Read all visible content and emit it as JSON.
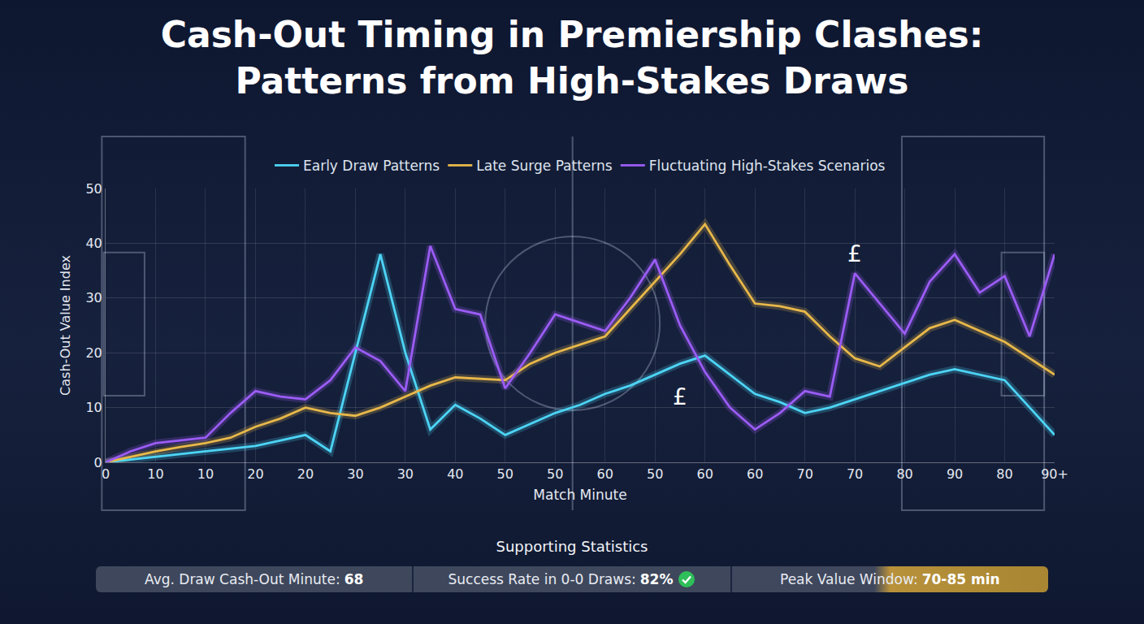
{
  "chart_data": {
    "type": "line",
    "title": "Cash-Out Timing in Premiership Clashes:\nPatterns from High-Stakes Draws",
    "x_label": "Match Minute",
    "y_label": "Cash-Out Value Index",
    "categories": [
      "0",
      null,
      "10",
      null,
      "10",
      null,
      "20",
      null,
      "20",
      null,
      "30",
      null,
      "30",
      null,
      "40",
      null,
      "50",
      null,
      "50",
      null,
      "60",
      null,
      "50",
      null,
      "60",
      null,
      "60",
      null,
      "70",
      null,
      "70",
      null,
      "80",
      null,
      "90",
      null,
      "80",
      null,
      "90+"
    ],
    "series": [
      {
        "name": "Early Draw Patterns",
        "color": "#4dd4f5",
        "values": [
          0,
          0.5,
          1,
          1.5,
          2,
          2.5,
          3,
          4,
          5,
          2,
          20,
          38,
          20,
          6,
          10.5,
          8,
          5,
          7,
          9,
          10.5,
          12.5,
          14,
          16,
          18,
          19.5,
          16,
          12.5,
          11,
          9,
          10,
          11.5,
          13,
          14.5,
          16,
          17,
          16,
          15,
          10,
          5
        ]
      },
      {
        "name": "Late Surge Patterns",
        "color": "#e8b84a",
        "values": [
          0,
          1,
          2,
          2.8,
          3.5,
          4.5,
          6.5,
          8,
          10,
          9,
          8.5,
          10,
          12,
          14,
          15.5,
          15.2,
          15,
          18,
          20,
          21.5,
          23,
          28,
          33,
          38,
          43.5,
          36,
          29,
          28.5,
          27.5,
          23,
          19,
          17.5,
          21,
          24.5,
          26,
          24,
          22,
          19,
          16
        ]
      },
      {
        "name": "Fluctuating High-Stakes Scenarios",
        "color": "#9b5cf5",
        "values": [
          0,
          2,
          3.5,
          4,
          4.5,
          9,
          13,
          12,
          11.5,
          15,
          21,
          18.5,
          13,
          39.5,
          28,
          27,
          13.5,
          20,
          27,
          25.5,
          24,
          30,
          37,
          25,
          16.5,
          10,
          6,
          9,
          13,
          12,
          34.5,
          29,
          23.5,
          33,
          38,
          31,
          34,
          23,
          38
        ]
      }
    ],
    "ylim": [
      0,
      50
    ],
    "yticks": [
      0,
      10,
      20,
      30,
      40,
      50
    ],
    "grid": true,
    "legend": "top",
    "annotations": [
      {
        "text": "£",
        "x": 30,
        "y": 38
      },
      {
        "text": "£",
        "x": 23,
        "y": 12
      }
    ]
  },
  "supporting_statistics": {
    "title": "Supporting Statistics",
    "items": [
      {
        "label": "Avg. Draw Cash-Out Minute:",
        "value": "68"
      },
      {
        "label": "Success Rate in 0-0 Draws:",
        "value": "82%"
      },
      {
        "label": "Peak Value Window:",
        "value": "70-85 min"
      }
    ]
  }
}
